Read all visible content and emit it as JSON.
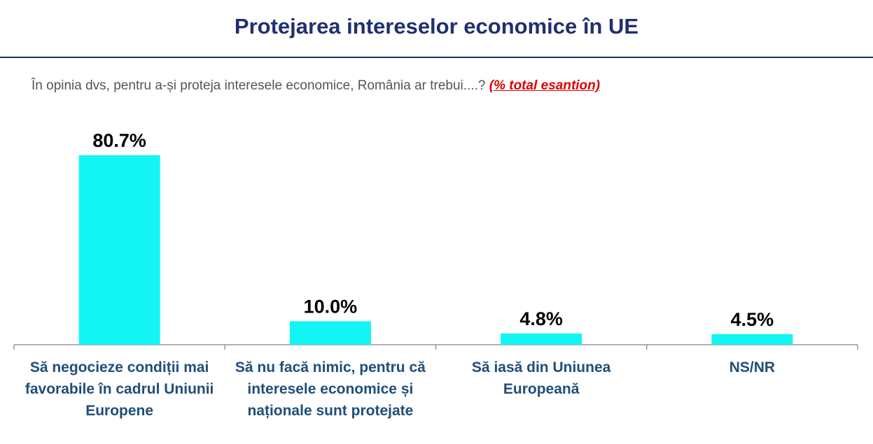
{
  "chart_data": {
    "type": "bar",
    "title": "Protejarea intereselor economice în UE",
    "subtitle": "În opinia dvs, pentru a-și proteja interesele economice, România ar trebui....?",
    "note": "(% total esantion)",
    "categories": [
      "Să negocieze condiții mai favorabile în cadrul Uniunii Europene",
      "Să nu facă nimic, pentru că interesele economice și naționale sunt protejate",
      "Să iasă din Uniunea Europeană",
      "NS/NR"
    ],
    "values": [
      80.7,
      10.0,
      4.8,
      4.5
    ],
    "value_labels": [
      "80.7%",
      "10.0%",
      "4.8%",
      "4.5%"
    ],
    "color": "#13f5f5"
  }
}
